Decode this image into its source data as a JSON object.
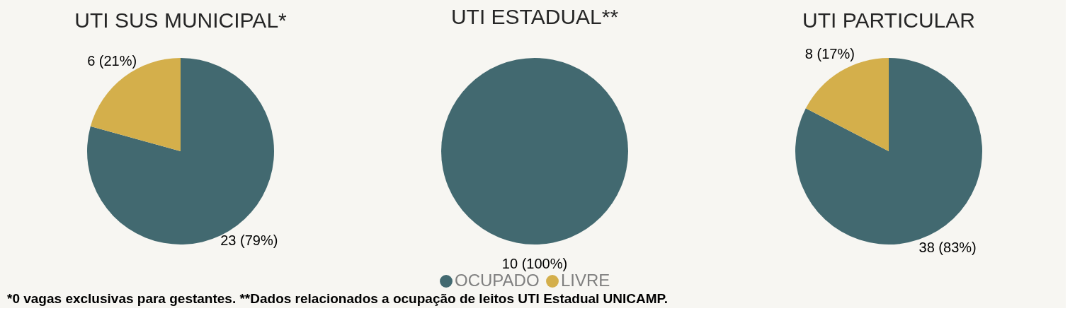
{
  "chart_data": [
    {
      "type": "pie",
      "title": "UTI SUS MUNICIPAL*",
      "categories": [
        "OCUPADO",
        "LIVRE"
      ],
      "values": [
        23,
        6
      ],
      "colors": [
        "#426970",
        "#d4af4b"
      ],
      "value_labels": [
        "23 (79%)",
        "6 (21%)"
      ],
      "legend": "bottom",
      "annotations": [
        "*0 vagas exclusivas para gestantes. **Dados relacionados a ocupação de leitos UTI Estadual UNICAMP."
      ]
    },
    {
      "type": "pie",
      "title": "UTI ESTADUAL**",
      "categories": [
        null,
        null
      ],
      "values": [
        10,
        0
      ],
      "colors": [
        "#426970",
        "#d4af4b"
      ],
      "value_labels": [
        "10 (100%)",
        null
      ]
    },
    {
      "type": "pie",
      "title": "UTI PARTICULAR",
      "categories": [
        null,
        null
      ],
      "values": [
        38,
        8
      ],
      "colors": [
        "#426970",
        "#d4af4b"
      ],
      "value_labels": [
        "38 (83%)",
        "8 (17%)"
      ]
    }
  ]
}
